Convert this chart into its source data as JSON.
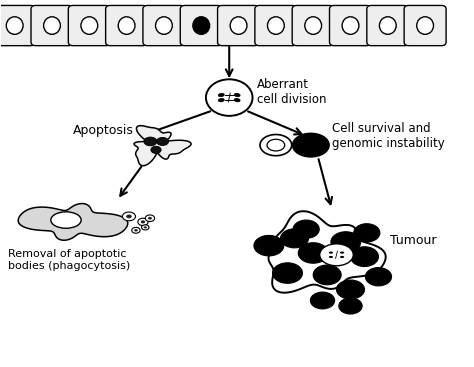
{
  "bg_color": "#ffffff",
  "text_color": "#000000",
  "cell_edge": "#000000",
  "labels": {
    "aberrant": "Aberrant\ncell division",
    "apoptosis": "Apoptosis",
    "cell_survival": "Cell survival and\ngenomic instability",
    "removal": "Removal of apoptotic\nbodies (phagocytosis)",
    "tumour": "Tumour"
  },
  "figsize": [
    4.74,
    3.67
  ],
  "dpi": 100
}
